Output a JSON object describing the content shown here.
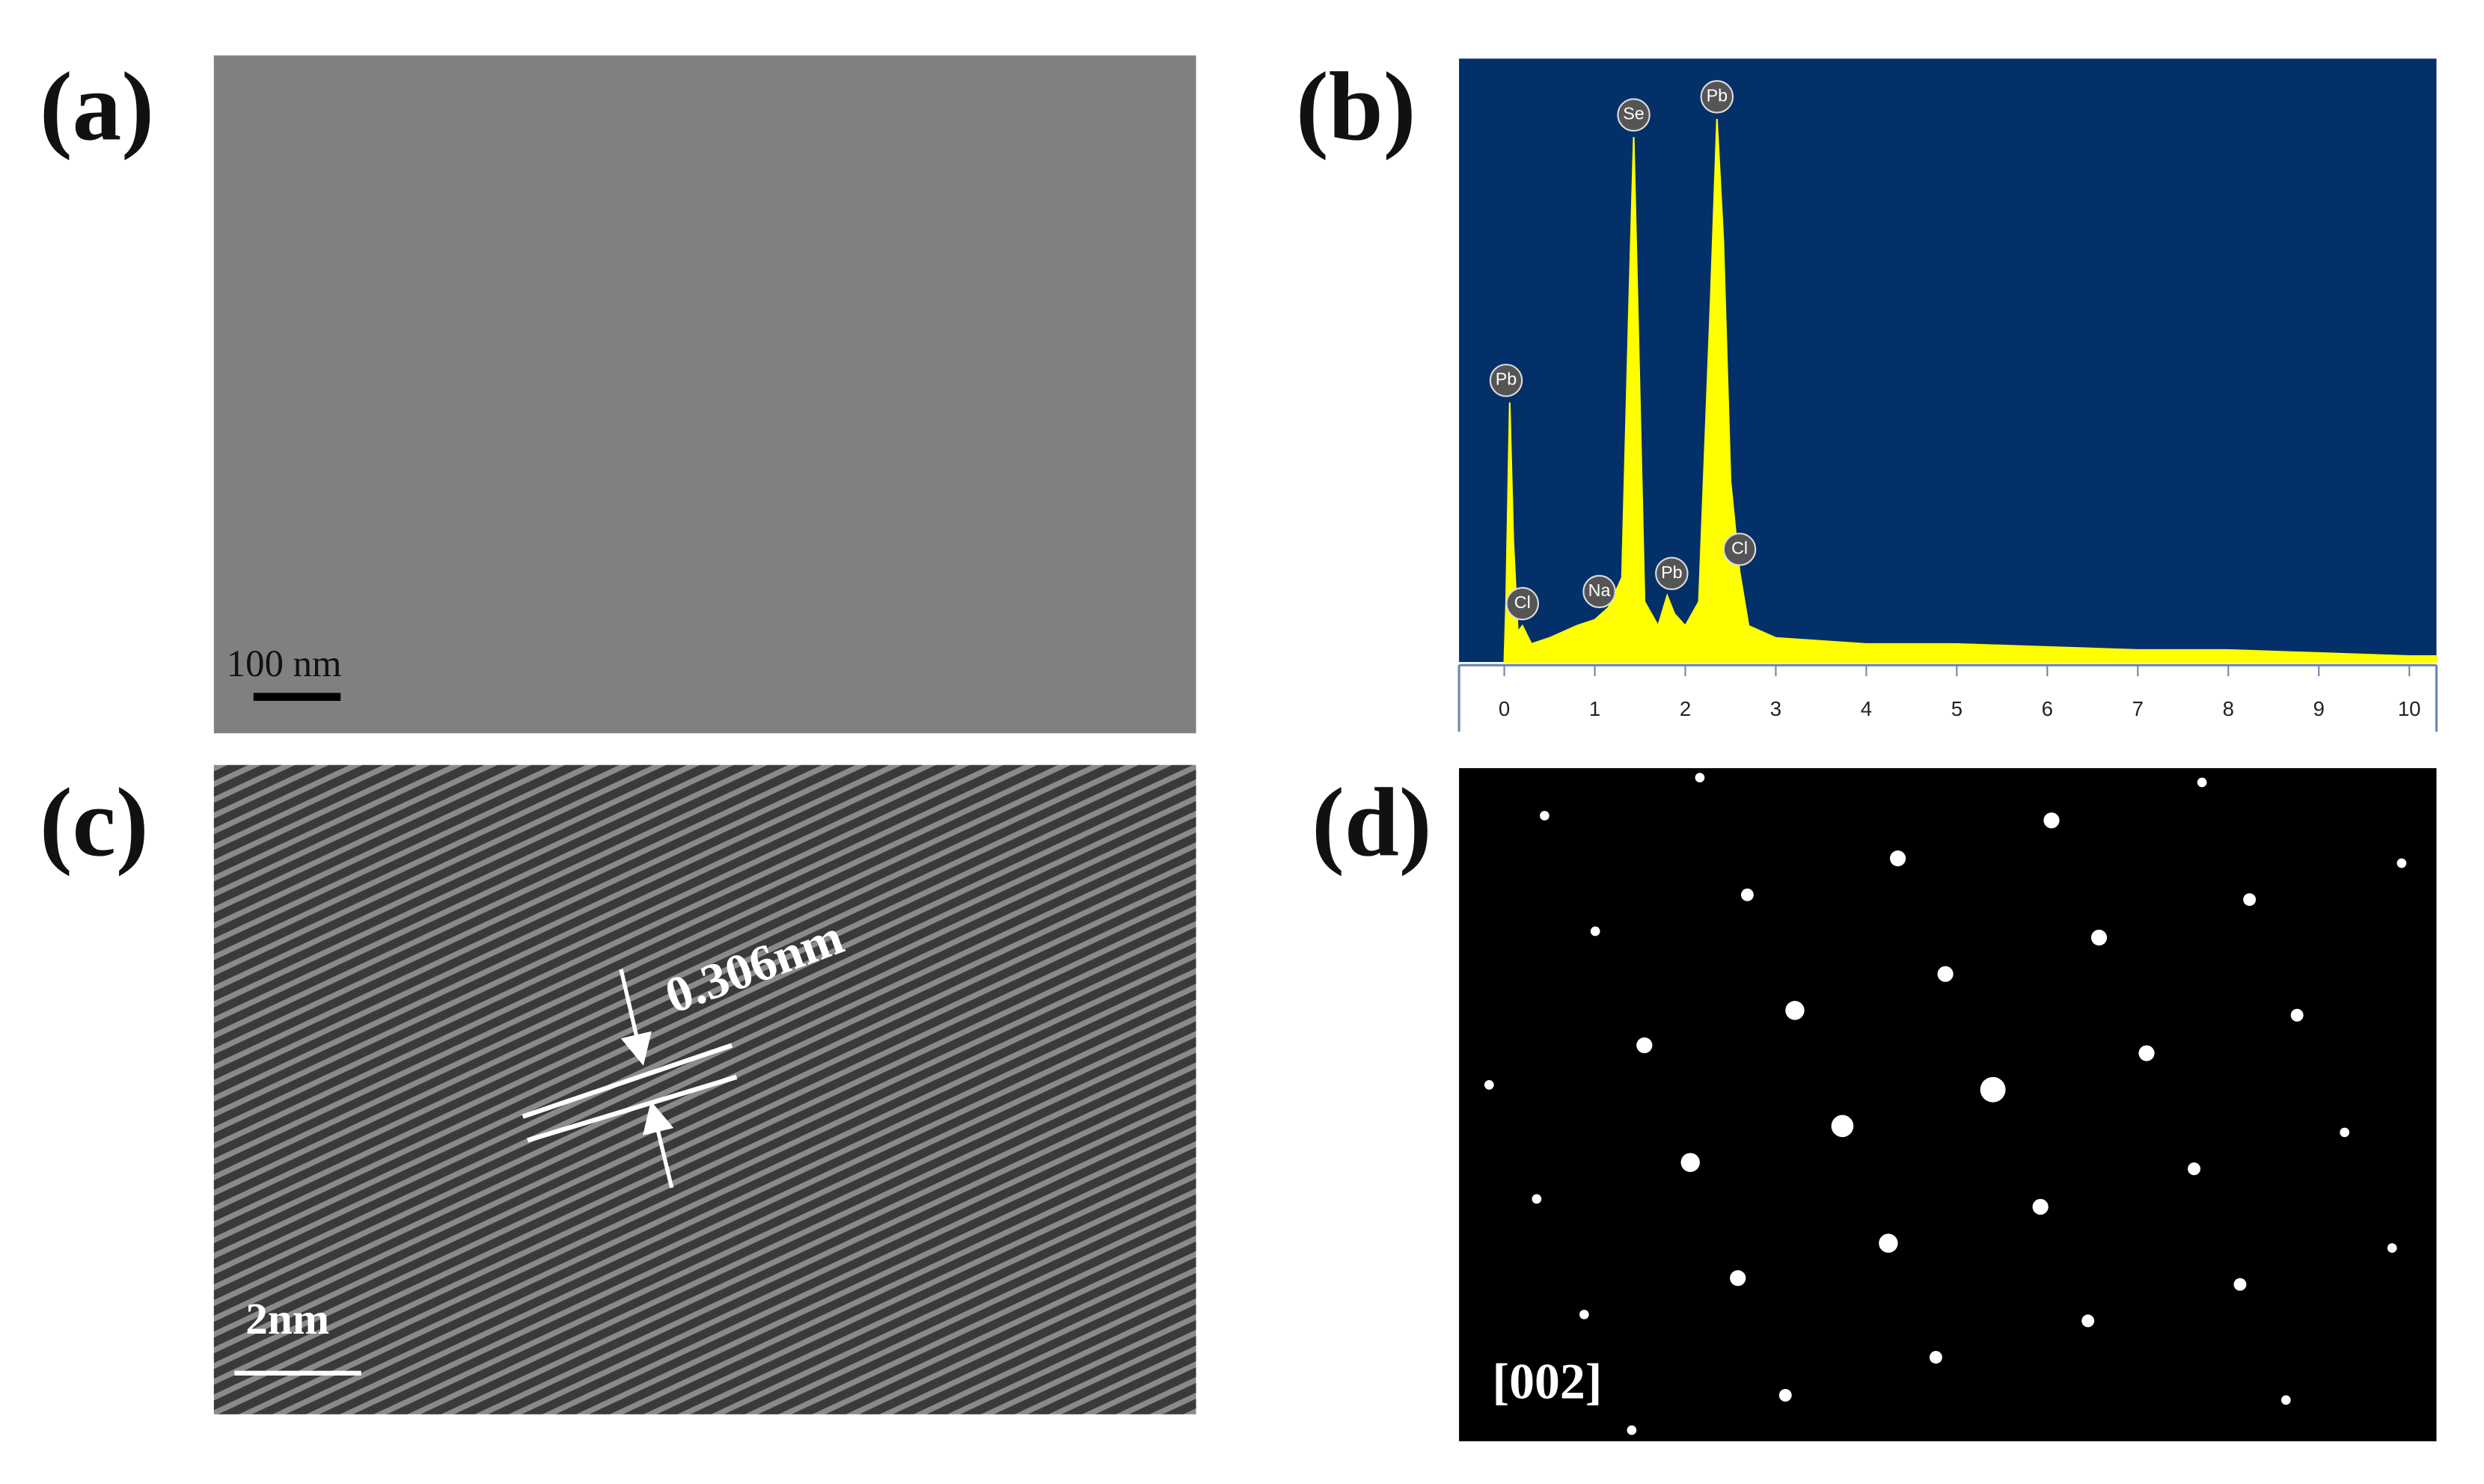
{
  "panels": [
    {
      "label": "(a)",
      "scale_bar": "100 nm"
    },
    {
      "label": "(b)",
      "chart_data": {
        "type": "line",
        "color": "#ffff00",
        "x": [
          0,
          0.02,
          0.06,
          0.1,
          0.15,
          0.2,
          0.3,
          0.5,
          0.8,
          1.0,
          1.15,
          1.3,
          1.38,
          1.43,
          1.48,
          1.55,
          1.7,
          1.8,
          1.88,
          2.0,
          2.15,
          2.28,
          2.35,
          2.42,
          2.5,
          2.6,
          2.7,
          3.0,
          4,
          5,
          6,
          7,
          8,
          9,
          10,
          10.3
        ],
        "values": [
          0,
          10,
          43,
          20,
          5,
          6,
          3,
          4,
          6,
          7,
          9,
          14,
          60,
          87,
          55,
          10,
          6,
          11,
          8,
          6,
          10,
          60,
          90,
          70,
          30,
          15,
          6,
          4,
          3,
          3,
          2.5,
          2,
          2,
          1.5,
          1,
          1
        ],
        "xlim": [
          -0.5,
          10.3
        ],
        "ylim": [
          0,
          100
        ],
        "xticks": [
          0,
          1,
          2,
          3,
          4,
          5,
          6,
          7,
          8,
          9,
          10
        ],
        "peaks": [
          {
            "label": "Pb",
            "x": 0.02,
            "y": 43
          },
          {
            "label": "Cl",
            "x": 0.2,
            "y": 6
          },
          {
            "label": "Na",
            "x": 1.05,
            "y": 8
          },
          {
            "label": "Se",
            "x": 1.43,
            "y": 87
          },
          {
            "label": "Pb",
            "x": 1.85,
            "y": 11
          },
          {
            "label": "Pb",
            "x": 2.35,
            "y": 90
          },
          {
            "label": "Cl",
            "x": 2.6,
            "y": 15
          }
        ]
      }
    },
    {
      "label": "(c)",
      "annotation": "0.306nm",
      "scale_bar": "2nm"
    },
    {
      "label": "(d)",
      "annotation": "[002]"
    }
  ]
}
